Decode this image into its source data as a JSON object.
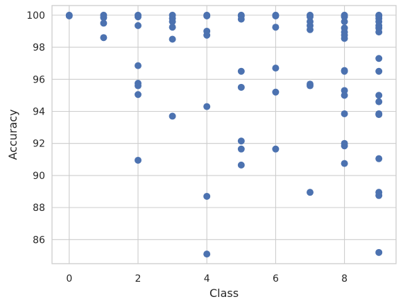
{
  "chart_data": {
    "type": "scatter",
    "title": "",
    "xlabel": "Class",
    "ylabel": "Accuracy",
    "xlim": [
      -0.5,
      9.5
    ],
    "ylim": [
      84.5,
      100.6
    ],
    "x_ticks": [
      0,
      2,
      4,
      6,
      8
    ],
    "y_ticks": [
      86,
      88,
      90,
      92,
      94,
      96,
      98,
      100
    ],
    "grid": true,
    "marker_color": "#4c72b0",
    "series": [
      {
        "points": [
          [
            0,
            100
          ],
          [
            0,
            99.95
          ],
          [
            1,
            100
          ],
          [
            1,
            99.85
          ],
          [
            1,
            99.5
          ],
          [
            1,
            98.6
          ],
          [
            2,
            100
          ],
          [
            2,
            99.9
          ],
          [
            2,
            99.35
          ],
          [
            2,
            96.85
          ],
          [
            2,
            95.75
          ],
          [
            2,
            95.6
          ],
          [
            2,
            95.05
          ],
          [
            2,
            90.95
          ],
          [
            3,
            100
          ],
          [
            3,
            99.8
          ],
          [
            3,
            99.6
          ],
          [
            3,
            99.25
          ],
          [
            3,
            98.5
          ],
          [
            3,
            93.7
          ],
          [
            4,
            100
          ],
          [
            4,
            99.95
          ],
          [
            4,
            99.0
          ],
          [
            4,
            98.75
          ],
          [
            4,
            94.3
          ],
          [
            4,
            88.7
          ],
          [
            4,
            85.1
          ],
          [
            5,
            100
          ],
          [
            5,
            99.95
          ],
          [
            5,
            99.75
          ],
          [
            5,
            96.5
          ],
          [
            5,
            95.5
          ],
          [
            5,
            92.15
          ],
          [
            5,
            91.65
          ],
          [
            5,
            90.65
          ],
          [
            6,
            100
          ],
          [
            6,
            99.95
          ],
          [
            6,
            99.25
          ],
          [
            6,
            96.7
          ],
          [
            6,
            95.2
          ],
          [
            6,
            91.65
          ],
          [
            7,
            100
          ],
          [
            7,
            99.9
          ],
          [
            7,
            99.6
          ],
          [
            7,
            99.35
          ],
          [
            7,
            99.1
          ],
          [
            7,
            95.7
          ],
          [
            7,
            95.6
          ],
          [
            7,
            88.95
          ],
          [
            8,
            100
          ],
          [
            8,
            99.95
          ],
          [
            8,
            99.9
          ],
          [
            8,
            99.6
          ],
          [
            8,
            99.2
          ],
          [
            8,
            98.95
          ],
          [
            8,
            98.75
          ],
          [
            8,
            98.55
          ],
          [
            8,
            96.55
          ],
          [
            8,
            96.5
          ],
          [
            8,
            95.3
          ],
          [
            8,
            95.0
          ],
          [
            8,
            93.85
          ],
          [
            8,
            92.0
          ],
          [
            8,
            91.85
          ],
          [
            8,
            90.75
          ],
          [
            9,
            100
          ],
          [
            9,
            99.95
          ],
          [
            9,
            99.8
          ],
          [
            9,
            99.6
          ],
          [
            9,
            99.35
          ],
          [
            9,
            99.2
          ],
          [
            9,
            98.95
          ],
          [
            9,
            97.3
          ],
          [
            9,
            96.5
          ],
          [
            9,
            95.0
          ],
          [
            9,
            94.6
          ],
          [
            9,
            93.85
          ],
          [
            9,
            93.8
          ],
          [
            9,
            91.05
          ],
          [
            9,
            88.95
          ],
          [
            9,
            88.75
          ],
          [
            9,
            85.2
          ]
        ]
      }
    ]
  }
}
